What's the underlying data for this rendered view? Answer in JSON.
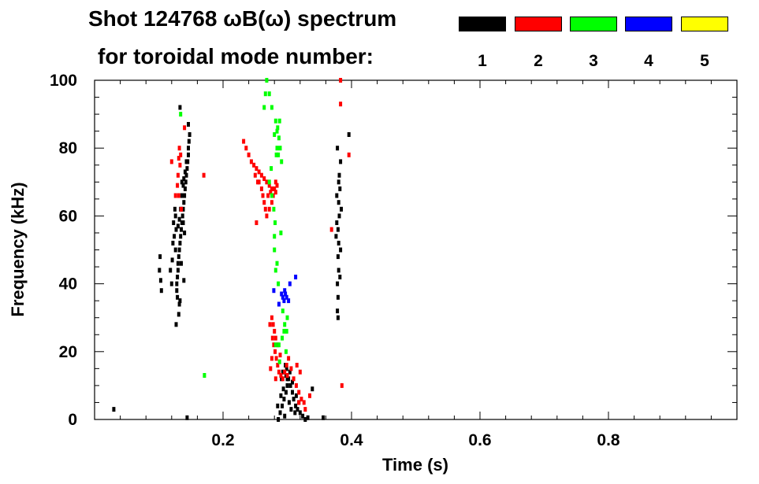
{
  "header": {
    "title_line1": "Shot 124768 ωB(ω) spectrum",
    "title_line2": "for toroidal mode number:"
  },
  "legend": [
    {
      "label": "1",
      "color": "#000000"
    },
    {
      "label": "2",
      "color": "#ff0000"
    },
    {
      "label": "3",
      "color": "#00ff00"
    },
    {
      "label": "4",
      "color": "#0000ff"
    },
    {
      "label": "5",
      "color": "#ffff00"
    }
  ],
  "chart_data": {
    "type": "scatter",
    "title": "Shot 124768 ωB(ω) spectrum",
    "xlabel": "Time (s)",
    "ylabel": "Frequency (kHz)",
    "xlim": [
      0.0,
      1.0
    ],
    "ylim": [
      0,
      100
    ],
    "x_ticks": [
      0.2,
      0.4,
      0.6,
      0.8
    ],
    "x_tick_labels": [
      "0.2",
      "0.4",
      "0.6",
      "0.8"
    ],
    "y_ticks": [
      0,
      20,
      40,
      60,
      80,
      100
    ],
    "y_tick_labels": [
      "0",
      "20",
      "40",
      "60",
      "80",
      "100"
    ],
    "grid": false,
    "series": [
      {
        "name": "1",
        "color": "#000000",
        "points": [
          [
            0.148,
            84
          ],
          [
            0.147,
            82
          ],
          [
            0.146,
            80
          ],
          [
            0.146,
            78
          ],
          [
            0.145,
            76
          ],
          [
            0.144,
            74
          ],
          [
            0.143,
            72
          ],
          [
            0.142,
            70
          ],
          [
            0.141,
            68
          ],
          [
            0.14,
            66
          ],
          [
            0.139,
            64
          ],
          [
            0.138,
            62
          ],
          [
            0.137,
            60
          ],
          [
            0.136,
            58
          ],
          [
            0.135,
            56
          ],
          [
            0.134,
            54
          ],
          [
            0.133,
            52
          ],
          [
            0.132,
            50
          ],
          [
            0.131,
            48
          ],
          [
            0.13,
            46
          ],
          [
            0.13,
            44
          ],
          [
            0.129,
            42
          ],
          [
            0.128,
            40
          ],
          [
            0.128,
            38
          ],
          [
            0.129,
            36
          ],
          [
            0.143,
            76
          ],
          [
            0.141,
            73
          ],
          [
            0.138,
            69
          ],
          [
            0.136,
            66
          ],
          [
            0.134,
            62
          ],
          [
            0.132,
            59
          ],
          [
            0.13,
            57
          ],
          [
            0.127,
            56
          ],
          [
            0.126,
            60
          ],
          [
            0.125,
            62
          ],
          [
            0.136,
            70
          ],
          [
            0.139,
            71
          ],
          [
            0.12,
            40
          ],
          [
            0.118,
            44
          ],
          [
            0.121,
            47
          ],
          [
            0.122,
            52
          ],
          [
            0.124,
            54
          ],
          [
            0.135,
            46
          ],
          [
            0.139,
            41
          ],
          [
            0.132,
            34
          ],
          [
            0.131,
            31
          ],
          [
            0.127,
            28
          ],
          [
            0.102,
            48
          ],
          [
            0.101,
            44
          ],
          [
            0.103,
            41
          ],
          [
            0.104,
            38
          ],
          [
            0.138,
            58
          ],
          [
            0.14,
            55
          ],
          [
            0.126,
            50
          ],
          [
            0.123,
            58
          ],
          [
            0.133,
            92
          ],
          [
            0.146,
            87
          ],
          [
            0.133,
            35
          ],
          [
            0.383,
            76
          ],
          [
            0.381,
            72
          ],
          [
            0.382,
            68
          ],
          [
            0.38,
            64
          ],
          [
            0.381,
            60
          ],
          [
            0.379,
            56
          ],
          [
            0.38,
            52
          ],
          [
            0.379,
            48
          ],
          [
            0.38,
            44
          ],
          [
            0.378,
            40
          ],
          [
            0.379,
            36
          ],
          [
            0.378,
            32
          ],
          [
            0.377,
            66
          ],
          [
            0.377,
            58
          ],
          [
            0.378,
            80
          ],
          [
            0.376,
            54
          ],
          [
            0.38,
            70
          ],
          [
            0.384,
            62
          ],
          [
            0.383,
            50
          ],
          [
            0.382,
            42
          ],
          [
            0.379,
            30
          ],
          [
            0.396,
            84
          ],
          [
            0.286,
            0
          ],
          [
            0.289,
            2
          ],
          [
            0.292,
            4
          ],
          [
            0.295,
            6
          ],
          [
            0.298,
            8
          ],
          [
            0.3,
            10
          ],
          [
            0.302,
            12
          ],
          [
            0.304,
            14
          ],
          [
            0.297,
            16
          ],
          [
            0.3,
            12
          ],
          [
            0.305,
            10
          ],
          [
            0.308,
            8
          ],
          [
            0.31,
            6
          ],
          [
            0.313,
            4
          ],
          [
            0.316,
            3
          ],
          [
            0.32,
            2
          ],
          [
            0.324,
            1
          ],
          [
            0.328,
            0
          ],
          [
            0.332,
            0.5
          ],
          [
            0.294,
            9
          ],
          [
            0.29,
            7
          ],
          [
            0.291,
            12
          ],
          [
            0.298,
            13
          ],
          [
            0.303,
            5
          ],
          [
            0.306,
            3
          ],
          [
            0.296,
            1
          ],
          [
            0.299,
            15
          ],
          [
            0.308,
            11
          ],
          [
            0.314,
            7
          ],
          [
            0.285,
            4
          ],
          [
            0.293,
            14
          ],
          [
            0.312,
            2
          ],
          [
            0.318,
            5
          ],
          [
            0.03,
            3
          ],
          [
            0.144,
            0.5
          ],
          [
            0.339,
            9
          ],
          [
            0.356,
            0.5
          ]
        ]
      },
      {
        "name": "2",
        "color": "#ff0000",
        "points": [
          [
            0.232,
            82
          ],
          [
            0.236,
            80
          ],
          [
            0.24,
            78
          ],
          [
            0.244,
            76
          ],
          [
            0.248,
            75
          ],
          [
            0.252,
            74
          ],
          [
            0.256,
            73
          ],
          [
            0.26,
            72
          ],
          [
            0.264,
            71
          ],
          [
            0.268,
            70
          ],
          [
            0.272,
            69
          ],
          [
            0.276,
            68
          ],
          [
            0.28,
            68
          ],
          [
            0.284,
            69
          ],
          [
            0.26,
            68
          ],
          [
            0.262,
            66
          ],
          [
            0.264,
            64
          ],
          [
            0.266,
            62
          ],
          [
            0.268,
            60
          ],
          [
            0.256,
            70
          ],
          [
            0.27,
            66
          ],
          [
            0.274,
            67
          ],
          [
            0.278,
            66
          ],
          [
            0.282,
            67
          ],
          [
            0.25,
            72
          ],
          [
            0.254,
            70
          ],
          [
            0.276,
            64
          ],
          [
            0.272,
            62
          ],
          [
            0.282,
            70
          ],
          [
            0.132,
            80
          ],
          [
            0.131,
            77
          ],
          [
            0.133,
            75
          ],
          [
            0.13,
            72
          ],
          [
            0.129,
            69
          ],
          [
            0.131,
            66
          ],
          [
            0.134,
            78
          ],
          [
            0.135,
            62
          ],
          [
            0.14,
            86
          ],
          [
            0.276,
            30
          ],
          [
            0.278,
            28
          ],
          [
            0.28,
            26
          ],
          [
            0.277,
            24
          ],
          [
            0.279,
            22
          ],
          [
            0.281,
            20
          ],
          [
            0.283,
            18
          ],
          [
            0.285,
            16
          ],
          [
            0.287,
            14
          ],
          [
            0.29,
            13
          ],
          [
            0.293,
            12
          ],
          [
            0.296,
            14
          ],
          [
            0.299,
            16
          ],
          [
            0.302,
            18
          ],
          [
            0.306,
            15
          ],
          [
            0.31,
            12
          ],
          [
            0.314,
            10
          ],
          [
            0.318,
            8
          ],
          [
            0.322,
            6
          ],
          [
            0.326,
            5
          ],
          [
            0.282,
            24
          ],
          [
            0.276,
            18
          ],
          [
            0.274,
            15
          ],
          [
            0.289,
            19
          ],
          [
            0.3,
            13
          ],
          [
            0.318,
            5
          ],
          [
            0.328,
            3
          ],
          [
            0.335,
            7
          ],
          [
            0.32,
            14
          ],
          [
            0.315,
            16
          ],
          [
            0.282,
            12
          ],
          [
            0.285,
            22
          ],
          [
            0.273,
            28
          ],
          [
            0.383,
            93
          ],
          [
            0.383,
            100
          ],
          [
            0.396,
            78
          ],
          [
            0.252,
            58
          ],
          [
            0.17,
            72
          ],
          [
            0.126,
            66
          ],
          [
            0.385,
            10
          ],
          [
            0.369,
            56
          ],
          [
            0.12,
            76
          ]
        ]
      },
      {
        "name": "3",
        "color": "#00ff00",
        "points": [
          [
            0.268,
            100
          ],
          [
            0.272,
            96
          ],
          [
            0.276,
            92
          ],
          [
            0.282,
            88
          ],
          [
            0.285,
            86
          ],
          [
            0.287,
            83
          ],
          [
            0.289,
            80
          ],
          [
            0.286,
            78
          ],
          [
            0.291,
            76
          ],
          [
            0.284,
            85
          ],
          [
            0.288,
            88
          ],
          [
            0.283,
            78
          ],
          [
            0.28,
            84
          ],
          [
            0.284,
            80
          ],
          [
            0.264,
            92
          ],
          [
            0.272,
            70
          ],
          [
            0.276,
            66
          ],
          [
            0.279,
            62
          ],
          [
            0.281,
            58
          ],
          [
            0.28,
            54
          ],
          [
            0.28,
            50
          ],
          [
            0.282,
            44
          ],
          [
            0.286,
            40
          ],
          [
            0.293,
            32
          ],
          [
            0.296,
            28
          ],
          [
            0.299,
            26
          ],
          [
            0.292,
            24
          ],
          [
            0.287,
            22
          ],
          [
            0.3,
            30
          ],
          [
            0.282,
            22
          ],
          [
            0.288,
            17
          ],
          [
            0.298,
            20
          ],
          [
            0.266,
            96
          ],
          [
            0.275,
            74
          ],
          [
            0.284,
            46
          ],
          [
            0.134,
            90
          ],
          [
            0.171,
            13
          ],
          [
            0.29,
            55
          ],
          [
            0.295,
            26
          ]
        ]
      },
      {
        "name": "4",
        "color": "#0000ff",
        "points": [
          [
            0.291,
            37
          ],
          [
            0.293,
            36
          ],
          [
            0.295,
            35
          ],
          [
            0.297,
            37
          ],
          [
            0.299,
            36
          ],
          [
            0.296,
            38
          ],
          [
            0.302,
            35
          ],
          [
            0.279,
            38
          ],
          [
            0.287,
            34
          ],
          [
            0.304,
            40
          ],
          [
            0.313,
            42
          ]
        ]
      },
      {
        "name": "5",
        "color": "#ffff00",
        "points": []
      }
    ]
  }
}
